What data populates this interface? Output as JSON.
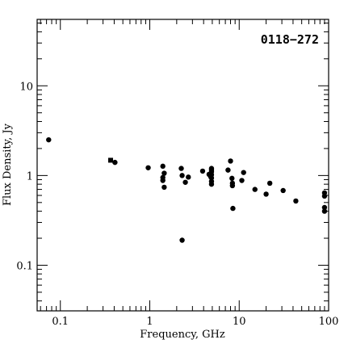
{
  "chart_data": {
    "type": "scatter",
    "title": "",
    "annotation": "0118−272",
    "xlabel": "Frequency, GHz",
    "ylabel": "Flux Density, Jy",
    "xscale": "log",
    "yscale": "log",
    "xlim": [
      0.055,
      100
    ],
    "ylim": [
      0.031,
      55
    ],
    "grid": false,
    "legend": "none",
    "x_tick_labels": [
      {
        "value": 0.1,
        "label": "0.1"
      },
      {
        "value": 1,
        "label": "1"
      },
      {
        "value": 10,
        "label": "10"
      },
      {
        "value": 100,
        "label": "100"
      }
    ],
    "y_tick_labels": [
      {
        "value": 0.1,
        "label": "0.1"
      },
      {
        "value": 1,
        "label": "1"
      },
      {
        "value": 10,
        "label": "10"
      }
    ],
    "series": [
      {
        "marker": "circle",
        "points": [
          [
            0.074,
            2.5
          ],
          [
            0.408,
            1.4
          ],
          [
            0.96,
            1.22
          ],
          [
            1.4,
            1.27
          ],
          [
            1.4,
            0.95
          ],
          [
            1.4,
            0.88
          ],
          [
            1.45,
            1.06
          ],
          [
            1.45,
            0.74
          ],
          [
            2.25,
            1.2
          ],
          [
            2.3,
            1.0
          ],
          [
            2.3,
            0.19
          ],
          [
            2.5,
            0.84
          ],
          [
            2.7,
            0.96
          ],
          [
            3.9,
            1.12
          ],
          [
            4.6,
            1.03
          ],
          [
            4.8,
            0.97
          ],
          [
            4.9,
            1.2
          ],
          [
            4.9,
            1.15
          ],
          [
            4.9,
            1.1
          ],
          [
            4.9,
            1.02
          ],
          [
            4.9,
            0.94
          ],
          [
            4.9,
            0.86
          ],
          [
            4.9,
            0.8
          ],
          [
            7.5,
            1.15
          ],
          [
            8.0,
            1.45
          ],
          [
            8.3,
            0.93
          ],
          [
            8.4,
            0.82
          ],
          [
            8.4,
            0.77
          ],
          [
            8.5,
            0.43
          ],
          [
            10.7,
            0.88
          ],
          [
            11.2,
            1.08
          ],
          [
            15.0,
            0.7
          ],
          [
            20.0,
            0.62
          ],
          [
            22.0,
            0.82
          ],
          [
            31.0,
            0.68
          ],
          [
            43.0,
            0.52
          ],
          [
            90.0,
            0.64
          ],
          [
            90.0,
            0.59
          ],
          [
            90.0,
            0.44
          ],
          [
            90.0,
            0.4
          ]
        ]
      },
      {
        "marker": "square",
        "points": [
          [
            0.365,
            1.48
          ]
        ]
      }
    ]
  }
}
